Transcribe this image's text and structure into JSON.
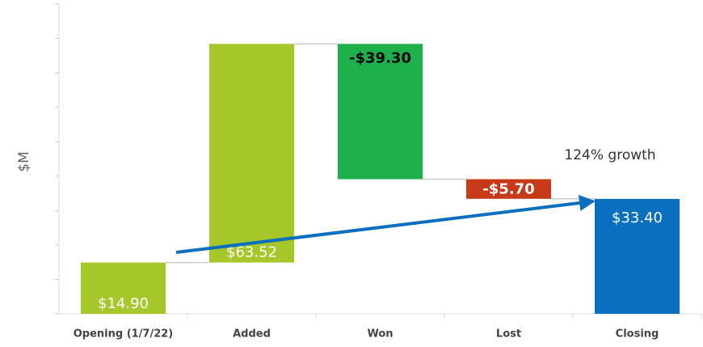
{
  "chart_data": {
    "type": "waterfall",
    "y_label": "$M",
    "annotation": "124% growth",
    "categories": [
      "Opening (1/7/22)",
      "Added",
      "Won",
      "Lost",
      "Closing"
    ],
    "values": [
      14.9,
      63.52,
      -39.3,
      -5.7,
      33.4
    ],
    "value_labels": [
      "$14.90",
      "$63.52",
      "-$39.30",
      "-$5.70",
      "$33.40"
    ],
    "colors": [
      "#a6c72a",
      "#a6c72a",
      "#1db04b",
      "#c8391a",
      "#0a6fbf"
    ],
    "ylim": [
      0,
      90
    ],
    "yticks": [
      0,
      10,
      20,
      30,
      40,
      50,
      60,
      70,
      80,
      90
    ]
  }
}
